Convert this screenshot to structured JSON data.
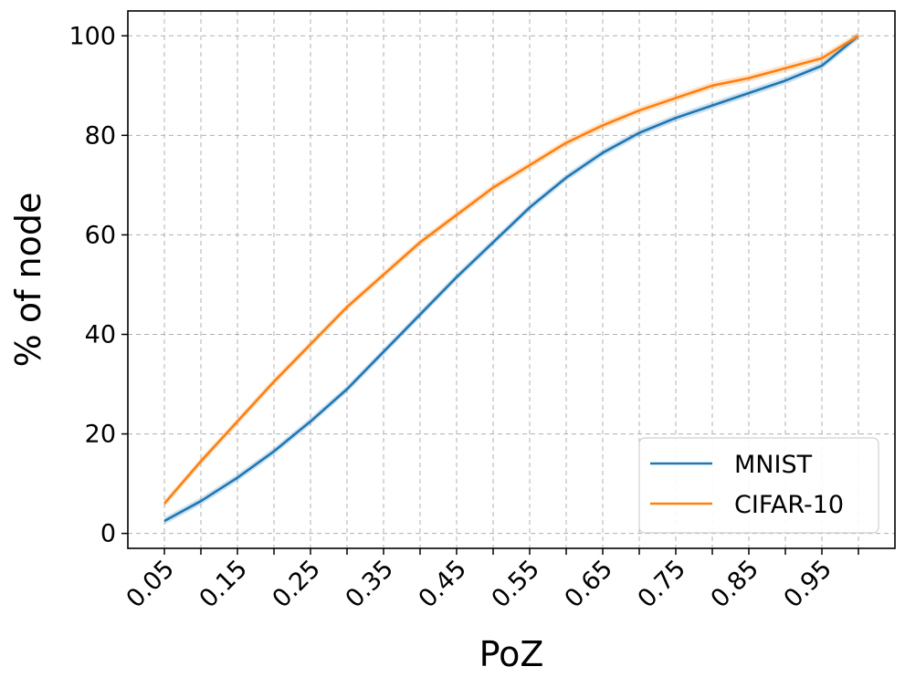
{
  "chart_data": {
    "type": "line",
    "title": "",
    "xlabel": "PoZ",
    "ylabel": "% of node",
    "x": [
      0.05,
      0.1,
      0.15,
      0.2,
      0.25,
      0.3,
      0.35,
      0.4,
      0.45,
      0.5,
      0.55,
      0.6,
      0.65,
      0.7,
      0.75,
      0.8,
      0.85,
      0.9,
      0.95,
      1.0
    ],
    "xticks": [
      0.05,
      0.15,
      0.25,
      0.35,
      0.45,
      0.55,
      0.65,
      0.75,
      0.85,
      0.95
    ],
    "xtick_labels": [
      "0.05",
      "0.15",
      "0.25",
      "0.35",
      "0.45",
      "0.55",
      "0.65",
      "0.75",
      "0.85",
      "0.95"
    ],
    "yticks": [
      0,
      20,
      40,
      60,
      80,
      100
    ],
    "ytick_labels": [
      "0",
      "20",
      "40",
      "60",
      "80",
      "100"
    ],
    "xlim": [
      0.0,
      1.05
    ],
    "ylim": [
      -3,
      105
    ],
    "grid": true,
    "legend_position": "bottom-right",
    "series": [
      {
        "name": "MNIST",
        "color": "#1f77b4",
        "values": [
          2.5,
          6.5,
          11.2,
          16.5,
          22.5,
          29.0,
          36.5,
          44.0,
          51.5,
          58.5,
          65.5,
          71.5,
          76.5,
          80.5,
          83.5,
          86.0,
          88.5,
          91.0,
          94.0,
          100.0
        ]
      },
      {
        "name": "CIFAR-10",
        "color": "#ff7f0e",
        "values": [
          6.0,
          14.5,
          22.5,
          30.5,
          38.0,
          45.5,
          52.0,
          58.5,
          64.0,
          69.5,
          74.0,
          78.5,
          82.0,
          85.0,
          87.5,
          90.0,
          91.5,
          93.5,
          95.5,
          100.0
        ]
      }
    ]
  }
}
